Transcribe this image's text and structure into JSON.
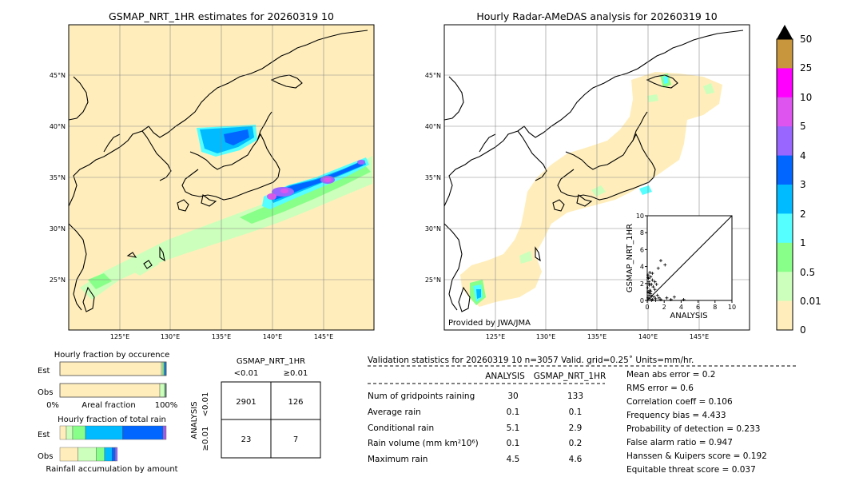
{
  "left_map": {
    "title": "GSMAP_NRT_1HR estimates for 20260319 10",
    "lat_labels": [
      "45°N",
      "40°N",
      "35°N",
      "30°N",
      "25°N"
    ],
    "lon_labels": [
      "125°E",
      "130°E",
      "135°E",
      "140°E",
      "145°E"
    ]
  },
  "right_map": {
    "title": "Hourly Radar-AMeDAS analysis for 20260319 10",
    "lat_labels": [
      "45°N",
      "40°N",
      "35°N",
      "30°N",
      "25°N"
    ],
    "lon_labels": [
      "125°E",
      "130°E",
      "135°E",
      "140°E",
      "145°E"
    ],
    "credit": "Provided by JWA/JMA"
  },
  "colorbar": {
    "labels": [
      "50",
      "25",
      "10",
      "5",
      "4",
      "3",
      "2",
      "1",
      "0.5",
      "0.01",
      "0"
    ],
    "colors": [
      "#c8963c",
      "#ff00ff",
      "#dd55ee",
      "#9966ff",
      "#0066ff",
      "#00bbff",
      "#55ffff",
      "#88ff88",
      "#ccffbb",
      "#ffeebb"
    ]
  },
  "chart_data": [
    {
      "type": "scatter",
      "xlabel": "ANALYSIS",
      "ylabel": "GSMAP_NRT_1HR",
      "xlim": [
        0,
        10
      ],
      "ylim": [
        0,
        10
      ],
      "x_ticks": [
        "0",
        "2",
        "4",
        "6",
        "8",
        "10"
      ],
      "y_ticks": [
        "0",
        "2",
        "4",
        "6",
        "8",
        "10"
      ],
      "points": [
        [
          0.1,
          3.0
        ],
        [
          0.15,
          2.6
        ],
        [
          0.2,
          2.2
        ],
        [
          0.25,
          1.8
        ],
        [
          0.05,
          1.5
        ],
        [
          0.3,
          1.2
        ],
        [
          0.1,
          1.0
        ],
        [
          0.4,
          0.8
        ],
        [
          0.2,
          0.6
        ],
        [
          0.5,
          0.5
        ],
        [
          0.1,
          0.3
        ],
        [
          0.3,
          0.2
        ],
        [
          0.6,
          0.1
        ],
        [
          0.8,
          0.4
        ],
        [
          1.0,
          0.2
        ],
        [
          0.3,
          3.3
        ],
        [
          0.4,
          2.8
        ],
        [
          0.6,
          2.4
        ],
        [
          0.5,
          1.9
        ],
        [
          0.7,
          1.6
        ],
        [
          0.9,
          1.3
        ],
        [
          0.2,
          2.0
        ],
        [
          0.1,
          2.7
        ],
        [
          0.6,
          3.2
        ],
        [
          1.3,
          3.8
        ],
        [
          0.9,
          2.2
        ],
        [
          1.1,
          1.9
        ],
        [
          1.6,
          4.7
        ],
        [
          2.1,
          4.2
        ],
        [
          1.2,
          0.6
        ],
        [
          1.6,
          0.1
        ],
        [
          2.3,
          0.3
        ],
        [
          3.2,
          0.4
        ],
        [
          4.3,
          0.1
        ],
        [
          2.8,
          0.1
        ],
        [
          0.5,
          0.0
        ],
        [
          1.0,
          0.0
        ],
        [
          0.2,
          0.9
        ],
        [
          0.4,
          1.1
        ],
        [
          1.4,
          0.3
        ]
      ]
    },
    {
      "type": "bar",
      "title": "Hourly fraction by occurence",
      "categories": [
        "Est",
        "Obs"
      ],
      "xlabel": "Areal fraction",
      "x_ticks": [
        "0%",
        "100%"
      ],
      "series": [
        {
          "values": [
            0.955,
            0.94
          ]
        },
        {
          "values": [
            0.015,
            0.045
          ]
        },
        {
          "values": [
            0.01,
            0.008
          ]
        },
        {
          "values": [
            0.01,
            0.004
          ]
        },
        {
          "values": [
            0.01,
            0.003
          ]
        }
      ]
    },
    {
      "type": "bar",
      "title": "Hourly fraction of total rain",
      "categories": [
        "Est",
        "Obs"
      ],
      "xlabel": "Rainfall accumulation by amount",
      "series": [
        {
          "values": [
            0.06,
            0.17
          ]
        },
        {
          "values": [
            0.06,
            0.17
          ]
        },
        {
          "values": [
            0.12,
            0.08
          ]
        },
        {
          "values": [
            0.35,
            0.07
          ]
        },
        {
          "values": [
            0.38,
            0.03
          ]
        },
        {
          "values": [
            0.02,
            0.02
          ]
        },
        {
          "values": [
            0.01,
            0.0
          ]
        }
      ]
    }
  ],
  "contingency": {
    "title": "GSMAP_NRT_1HR",
    "col_labels": [
      "<0.01",
      "≥0.01"
    ],
    "row_axis": "ANALYSIS",
    "row_labels": [
      "<0.01",
      "≥0.01"
    ],
    "cells": [
      "2901",
      "126",
      "23",
      "7"
    ]
  },
  "validation": {
    "header": "Validation statistics for 20260319 10  n=3057 Valid. grid=0.25˚ Units=mm/hr.",
    "col1": "ANALYSIS",
    "col2": "GSMAP_NRT_1HR",
    "rows": [
      {
        "label": "Num of gridpoints raining",
        "a": "30",
        "b": "133"
      },
      {
        "label": "Average rain",
        "a": "0.1",
        "b": "0.1"
      },
      {
        "label": "Conditional rain",
        "a": "5.1",
        "b": "2.9"
      },
      {
        "label": "Rain volume (mm km²10⁶)",
        "a": "0.1",
        "b": "0.2"
      },
      {
        "label": "Maximum rain",
        "a": "4.5",
        "b": "4.6"
      }
    ],
    "scores": [
      "Mean abs error =    0.2",
      "RMS error =    0.6",
      "Correlation coeff =  0.106",
      "Frequency bias =  4.433",
      "Probability of detection =  0.233",
      "False alarm ratio =  0.947",
      "Hanssen & Kuipers score =  0.192",
      "Equitable threat score =  0.037"
    ]
  }
}
